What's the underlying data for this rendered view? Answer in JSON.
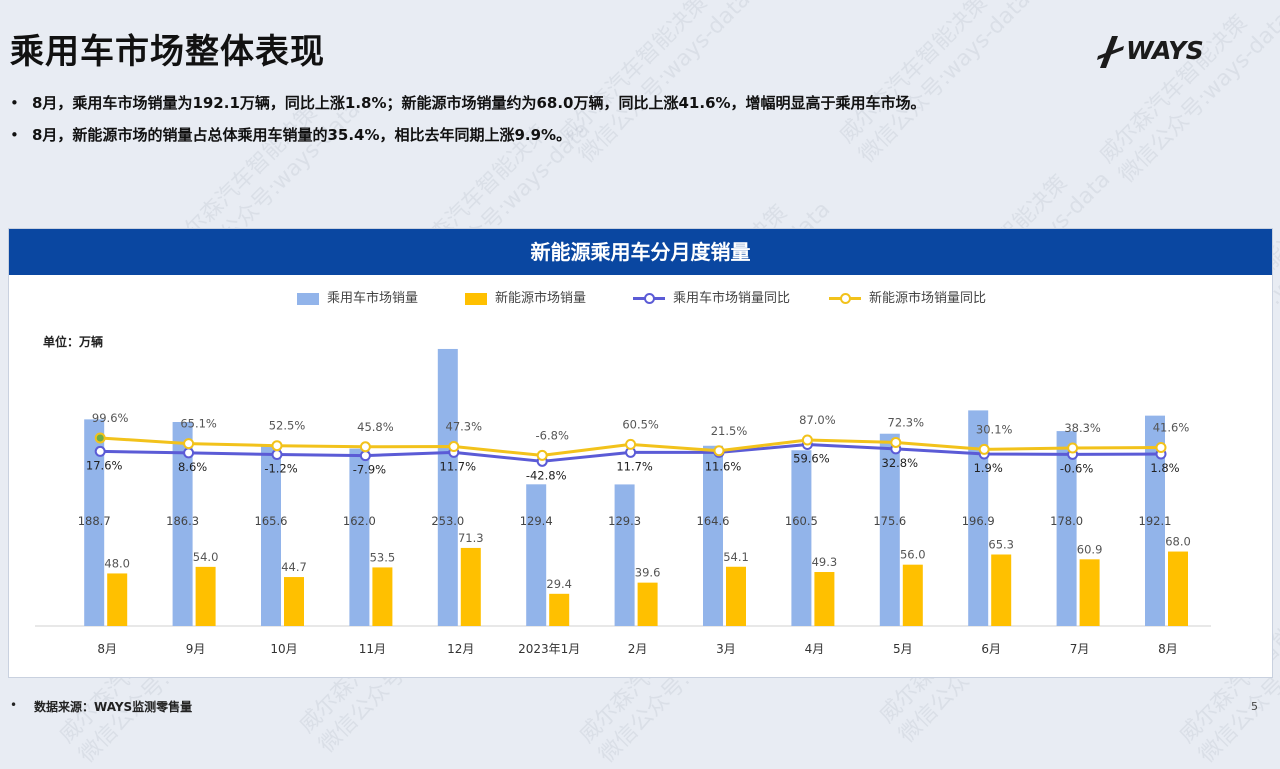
{
  "slide": {
    "title": "乘用车市场整体表现",
    "logo_text": "WAYS",
    "bullets": [
      "8月，乘用车市场销量为192.1万辆，同比上涨1.8%；新能源市场销量约为68.0万辆，同比上涨41.6%，增幅明显高于乘用车市场。",
      "8月，新能源市场的销量占总体乘用车销量的35.4%，相比去年同期上涨9.9%。"
    ],
    "footer_bullet": "•",
    "footer_source": "数据来源：WAYS监测零售量",
    "page_number": "5",
    "watermark_lines": [
      "威尔森汽车智能决策",
      "微信公众号:ways-data"
    ]
  },
  "colors": {
    "header_bg": "#0a47a1",
    "total_bar": "#92b4ea",
    "nev_bar": "#ffc000",
    "total_line": "#5b5bd6",
    "nev_line": "#f2c21b",
    "first_point_fill": "#70ad47"
  },
  "chart_data": {
    "type": "bar",
    "title": "新能源乘用车分月度销量",
    "unit": "单位：万辆",
    "categories": [
      "8月",
      "9月",
      "10月",
      "11月",
      "12月",
      "2023年1月",
      "2月",
      "3月",
      "4月",
      "5月",
      "6月",
      "7月",
      "8月"
    ],
    "legend_position": "top",
    "grid": false,
    "series": [
      {
        "name": "乘用车市场销量",
        "kind": "bar",
        "values": [
          188.7,
          186.3,
          165.6,
          162.0,
          253.0,
          129.4,
          129.3,
          164.6,
          160.5,
          175.6,
          196.9,
          178.0,
          192.1
        ]
      },
      {
        "name": "新能源市场销量",
        "kind": "bar",
        "values": [
          48.0,
          54.0,
          44.7,
          53.5,
          71.3,
          29.4,
          39.6,
          54.1,
          49.3,
          56.0,
          65.3,
          60.9,
          68.0
        ]
      },
      {
        "name": "乘用车市场销量同比",
        "kind": "line",
        "values": [
          17.6,
          8.6,
          -1.2,
          -7.9,
          11.7,
          -42.8,
          11.7,
          11.6,
          59.6,
          32.8,
          1.9,
          -0.6,
          1.8
        ],
        "labels": [
          "17.6%",
          "8.6%",
          "-1.2%",
          "-7.9%",
          "11.7%",
          "-42.8%",
          "11.7%",
          "11.6%",
          "59.6%",
          "32.8%",
          "1.9%",
          "-0.6%",
          "1.8%"
        ]
      },
      {
        "name": "新能源市场销量同比",
        "kind": "line",
        "values": [
          99.6,
          65.1,
          52.5,
          45.8,
          47.3,
          -6.8,
          60.5,
          21.5,
          87.0,
          72.3,
          30.1,
          38.3,
          41.6
        ],
        "labels": [
          "99.6%",
          "65.1%",
          "52.5%",
          "45.8%",
          "47.3%",
          "-6.8%",
          "60.5%",
          "21.5%",
          "87.0%",
          "72.3%",
          "30.1%",
          "38.3%",
          "41.6%"
        ]
      }
    ]
  }
}
